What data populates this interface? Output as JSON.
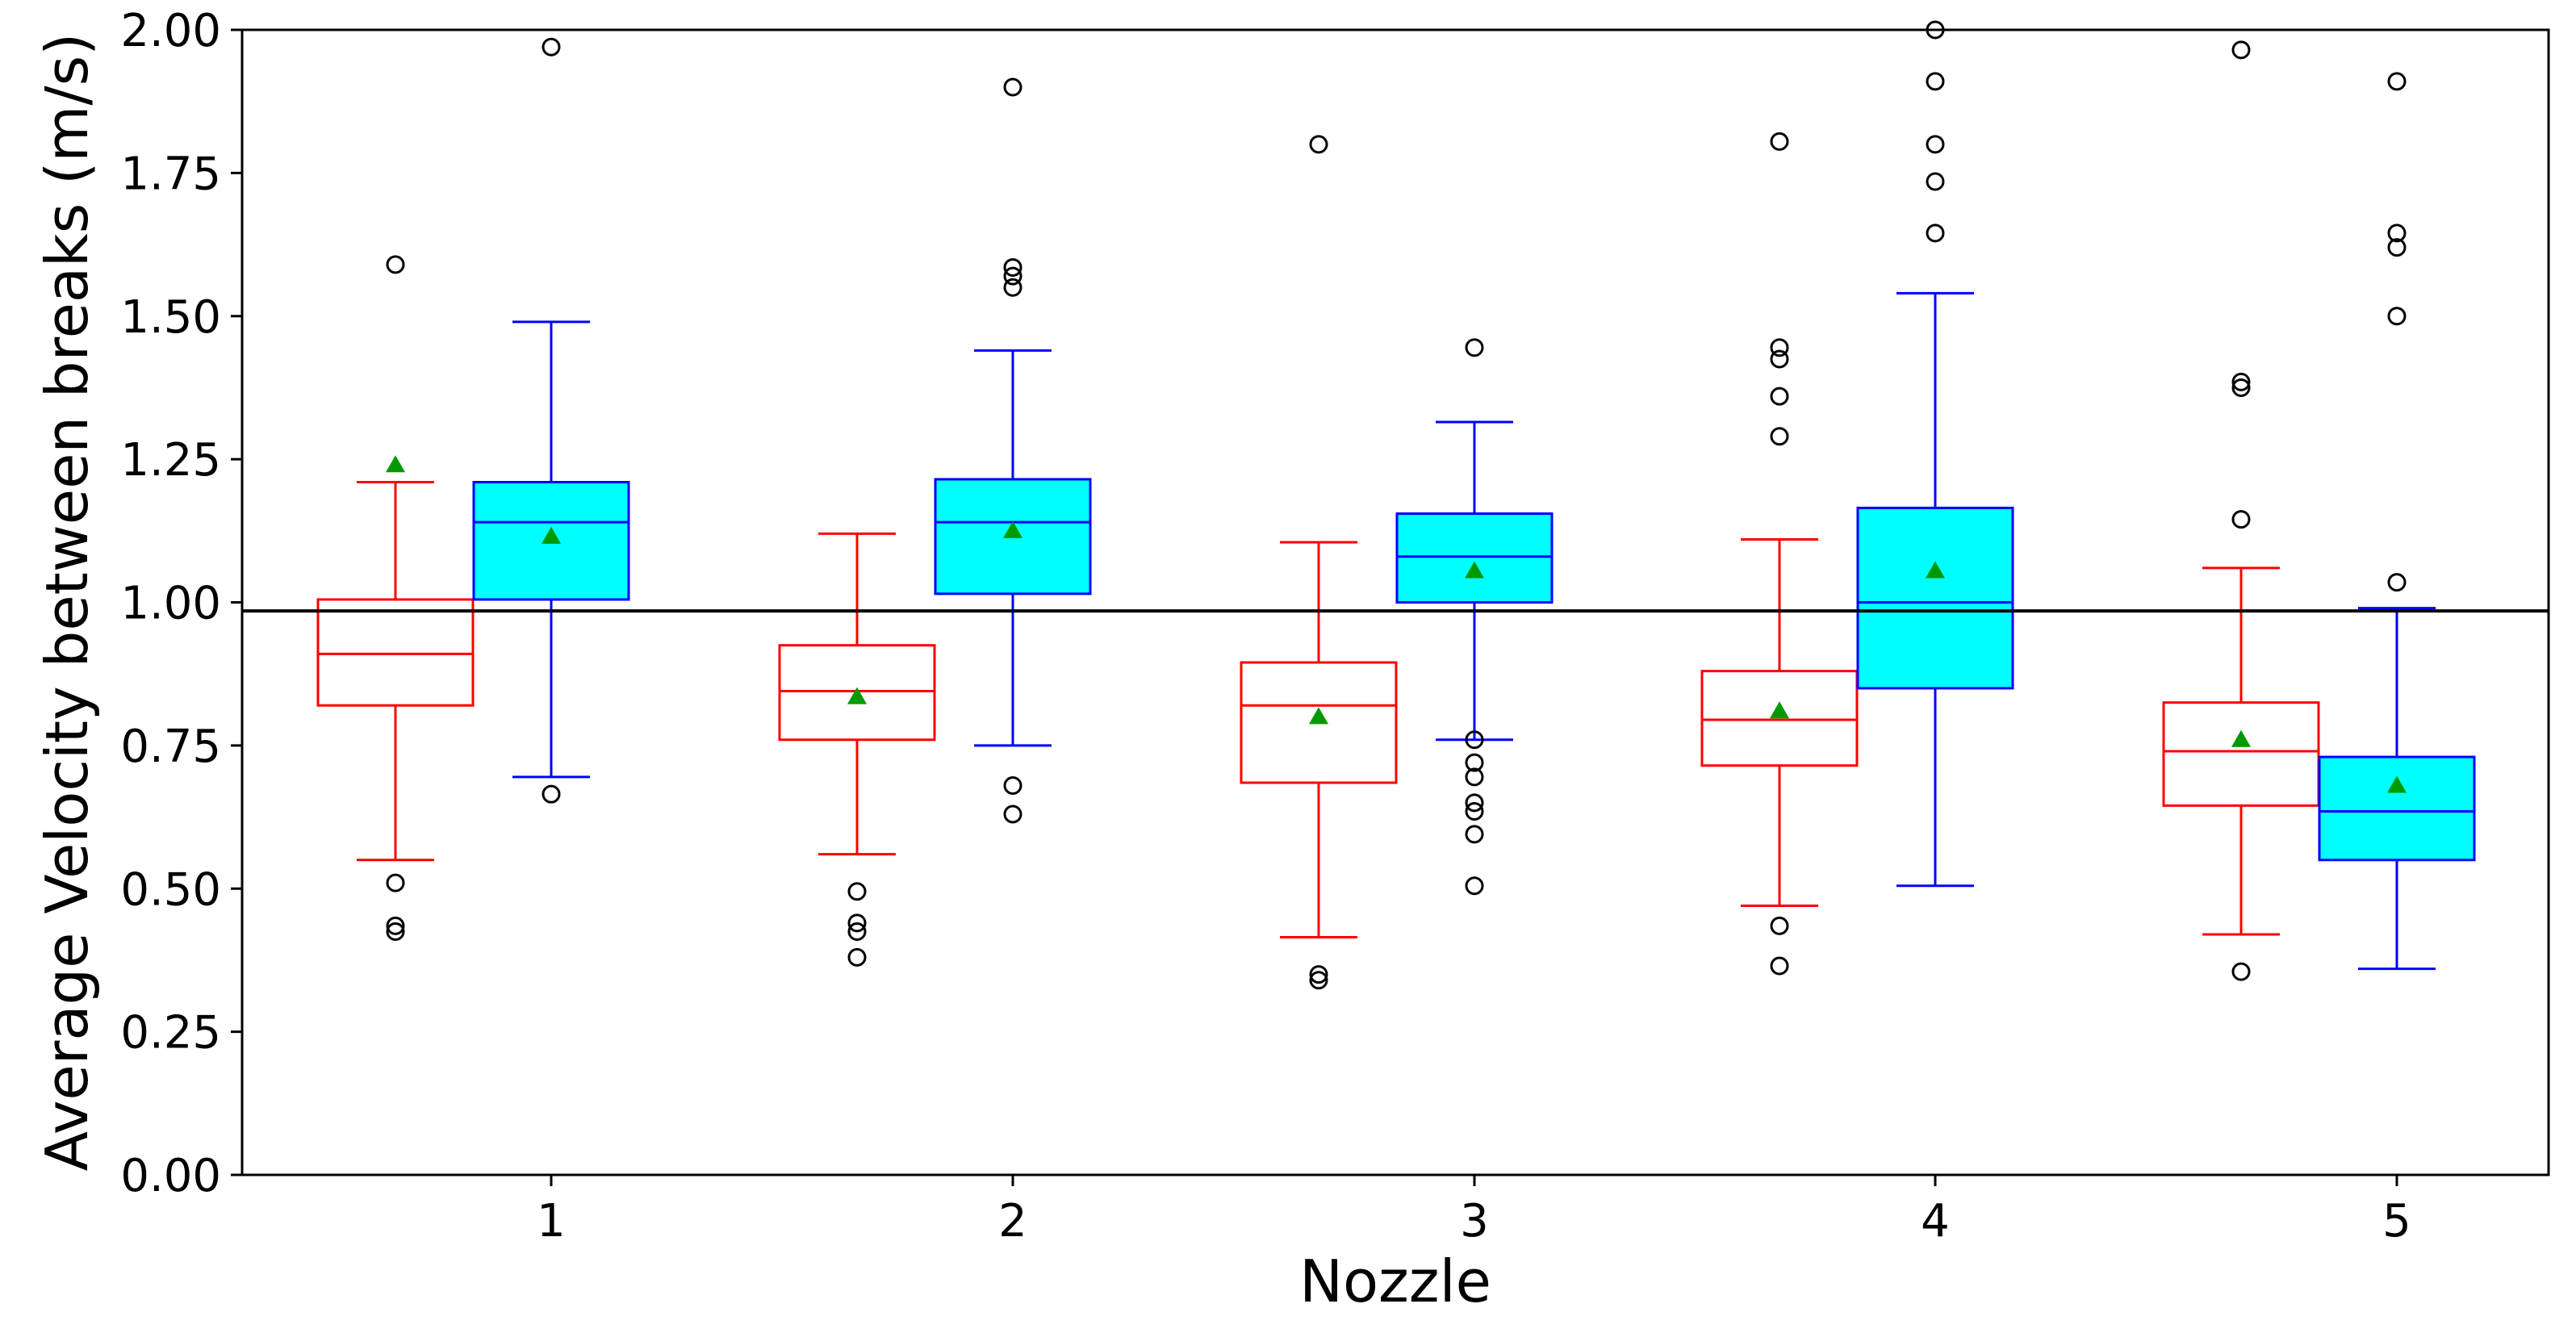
{
  "chart_data": {
    "type": "box",
    "title": "",
    "xlabel": "Nozzle",
    "ylabel": "Average Velocity between breaks (m/s)",
    "ylim": [
      0,
      2.0
    ],
    "y_ticks": [
      "0.00",
      "0.25",
      "0.50",
      "0.75",
      "1.00",
      "1.25",
      "1.50",
      "1.75",
      "2.00"
    ],
    "categories": [
      "1",
      "2",
      "3",
      "4",
      "5"
    ],
    "reference_line": {
      "y": 0.985,
      "color": "#000000"
    },
    "mean_marker_color": "#009900",
    "flier_color": "#000000",
    "series": [
      {
        "name": "red",
        "edge_color": "#ff0000",
        "face_color": "none",
        "boxes": [
          {
            "whislo": 0.55,
            "q1": 0.82,
            "med": 0.91,
            "q3": 1.005,
            "whishi": 1.21,
            "mean": 1.24,
            "fliers": [
              1.59,
              0.51,
              0.435,
              0.425
            ]
          },
          {
            "whislo": 0.56,
            "q1": 0.76,
            "med": 0.845,
            "q3": 0.925,
            "whishi": 1.12,
            "mean": 0.835,
            "fliers": [
              0.495,
              0.44,
              0.425,
              0.38
            ]
          },
          {
            "whislo": 0.415,
            "q1": 0.685,
            "med": 0.82,
            "q3": 0.895,
            "whishi": 1.105,
            "mean": 0.8,
            "fliers": [
              1.8,
              0.35,
              0.34
            ]
          },
          {
            "whislo": 0.47,
            "q1": 0.715,
            "med": 0.795,
            "q3": 0.88,
            "whishi": 1.11,
            "mean": 0.81,
            "fliers": [
              1.805,
              1.445,
              1.425,
              1.36,
              1.29,
              0.435,
              0.365
            ]
          },
          {
            "whislo": 0.42,
            "q1": 0.645,
            "med": 0.74,
            "q3": 0.825,
            "whishi": 1.06,
            "mean": 0.76,
            "fliers": [
              1.965,
              1.385,
              1.375,
              1.145,
              0.355
            ]
          }
        ]
      },
      {
        "name": "blue",
        "edge_color": "#0000ff",
        "face_color": "#00ffff",
        "boxes": [
          {
            "whislo": 0.695,
            "q1": 1.005,
            "med": 1.14,
            "q3": 1.21,
            "whishi": 1.49,
            "mean": 1.115,
            "fliers": [
              1.97,
              0.665
            ]
          },
          {
            "whislo": 0.75,
            "q1": 1.015,
            "med": 1.14,
            "q3": 1.215,
            "whishi": 1.44,
            "mean": 1.125,
            "fliers": [
              1.9,
              1.585,
              1.57,
              1.55,
              0.68,
              0.63
            ]
          },
          {
            "whislo": 0.76,
            "q1": 1.0,
            "med": 1.08,
            "q3": 1.155,
            "whishi": 1.315,
            "mean": 1.055,
            "fliers": [
              1.445,
              0.76,
              0.72,
              0.695,
              0.65,
              0.635,
              0.595,
              0.505
            ]
          },
          {
            "whislo": 0.505,
            "q1": 0.85,
            "med": 1.0,
            "q3": 1.165,
            "whishi": 1.54,
            "mean": 1.055,
            "fliers": [
              2.0,
              1.91,
              1.8,
              1.735,
              1.645
            ]
          },
          {
            "whislo": 0.36,
            "q1": 0.55,
            "med": 0.635,
            "q3": 0.73,
            "whishi": 0.99,
            "mean": 0.68,
            "fliers": [
              1.91,
              1.645,
              1.62,
              1.5,
              1.035
            ]
          }
        ]
      }
    ]
  }
}
